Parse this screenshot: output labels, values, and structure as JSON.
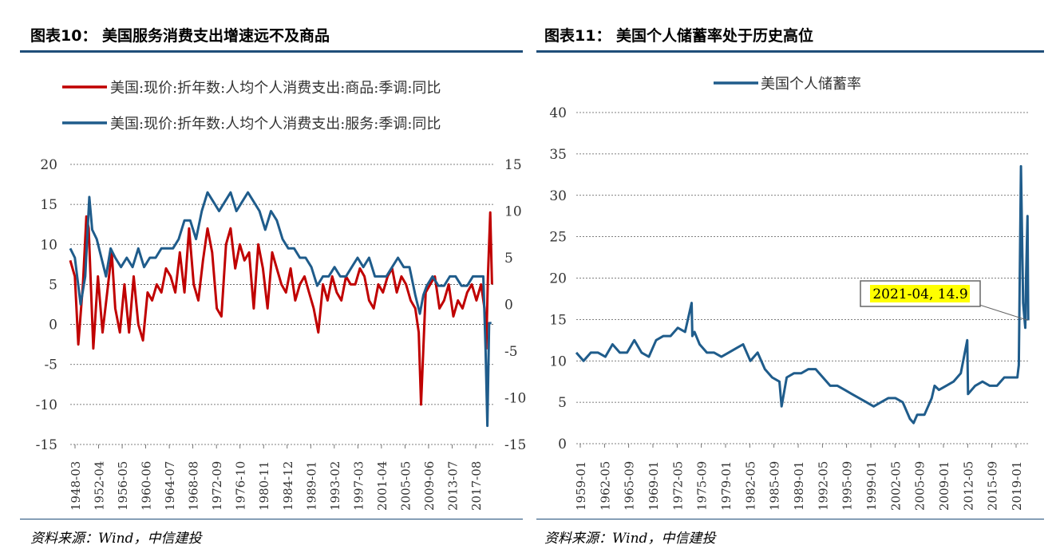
{
  "left_panel": {
    "title": "图表10：  美国服务消费支出增速远不及商品",
    "source": "资料来源：Wind，中信建投"
  },
  "right_panel": {
    "title": "图表11：  美国个人储蓄率处于历史高位",
    "source": "资料来源：Wind，中信建投"
  },
  "chart_data": [
    {
      "type": "line",
      "legend_placement": "top",
      "grid": true,
      "x_tick_labels": [
        "1948-03",
        "1952-04",
        "1956-05",
        "1960-06",
        "1964-07",
        "1968-08",
        "1972-09",
        "1976-10",
        "1980-11",
        "1984-12",
        "1989-01",
        "1993-02",
        "1997-03",
        "2001-04",
        "2005-05",
        "2009-06",
        "2013-07",
        "2017-08"
      ],
      "xlim": [
        1948.2,
        2021.8
      ],
      "ylim_left": [
        -15,
        20
      ],
      "ylim_right": [
        -15,
        15
      ],
      "left_ticks": [
        20,
        15,
        10,
        5,
        0,
        -5,
        -10,
        -15
      ],
      "right_ticks": [
        15,
        10,
        5,
        0,
        -5,
        -10,
        -15
      ],
      "series": [
        {
          "name": "美国:现价:折年数:人均个人消费支出:商品:季调:同比",
          "color": "#c00000",
          "axis": "left",
          "x": [
            1948.2,
            1949.0,
            1949.6,
            1950.4,
            1951.0,
            1951.4,
            1952.2,
            1953.0,
            1953.8,
            1954.6,
            1955.4,
            1956.0,
            1956.8,
            1957.6,
            1958.4,
            1959.2,
            1960.0,
            1960.8,
            1961.6,
            1962.4,
            1963.2,
            1964.0,
            1964.8,
            1965.6,
            1966.4,
            1967.2,
            1968.0,
            1968.8,
            1969.6,
            1970.4,
            1971.2,
            1972.0,
            1972.8,
            1973.6,
            1974.4,
            1975.2,
            1976.0,
            1976.8,
            1977.6,
            1978.4,
            1979.2,
            1980.0,
            1980.8,
            1981.6,
            1982.4,
            1983.2,
            1984.0,
            1984.8,
            1985.6,
            1986.4,
            1987.2,
            1988.0,
            1988.8,
            1989.6,
            1990.4,
            1991.2,
            1992.0,
            1992.8,
            1993.6,
            1994.4,
            1995.2,
            1996.0,
            1996.8,
            1997.6,
            1998.4,
            1999.2,
            2000.0,
            2000.8,
            2001.6,
            2002.4,
            2003.2,
            2004.0,
            2004.8,
            2005.6,
            2006.4,
            2007.2,
            2008.0,
            2008.6,
            2009.0,
            2009.4,
            2009.8,
            2010.6,
            2011.4,
            2012.2,
            2013.0,
            2013.8,
            2014.6,
            2015.4,
            2016.2,
            2017.0,
            2017.8,
            2018.6,
            2019.4,
            2020.0,
            2020.3,
            2020.6,
            2021.0,
            2021.3
          ],
          "values": [
            8,
            6,
            -2.5,
            5,
            13.5,
            12,
            -3,
            6,
            -1,
            4,
            9,
            2,
            -1,
            5,
            -1,
            6,
            0,
            -2,
            4,
            3,
            5,
            4,
            7,
            6,
            4,
            9,
            4,
            12,
            5,
            3,
            8,
            12,
            9,
            2,
            1,
            10,
            12,
            7,
            10,
            8,
            9,
            2,
            10,
            7,
            2,
            9,
            7,
            5,
            4,
            7,
            3,
            5,
            6,
            4,
            2,
            -1,
            5,
            3,
            6,
            4,
            3,
            6,
            5,
            5,
            7,
            6,
            3,
            2,
            5,
            4,
            6,
            7,
            4,
            6,
            5,
            3,
            2,
            -1,
            -10,
            -3,
            4,
            5,
            6,
            2,
            3,
            5,
            1,
            3,
            2,
            4,
            5,
            3,
            5,
            2,
            -3,
            6,
            14,
            5
          ]
        },
        {
          "name": "美国:现价:折年数:人均个人消费支出:服务:季调:同比",
          "color": "#1f5c8b",
          "axis": "right",
          "x": [
            1948.2,
            1949.0,
            1950.0,
            1950.8,
            1951.5,
            1952.0,
            1952.8,
            1953.6,
            1954.4,
            1955.2,
            1956.0,
            1957.0,
            1958.0,
            1959.0,
            1960.0,
            1961.0,
            1962.0,
            1963.0,
            1964.0,
            1965.0,
            1966.0,
            1967.0,
            1968.0,
            1969.0,
            1970.0,
            1971.0,
            1972.0,
            1973.0,
            1974.0,
            1975.0,
            1976.0,
            1977.0,
            1978.0,
            1979.0,
            1980.0,
            1981.0,
            1982.0,
            1983.0,
            1984.0,
            1985.0,
            1986.0,
            1987.0,
            1988.0,
            1989.0,
            1990.0,
            1991.0,
            1992.0,
            1993.0,
            1994.0,
            1995.0,
            1996.0,
            1997.0,
            1998.0,
            1999.0,
            2000.0,
            2001.0,
            2002.0,
            2003.0,
            2004.0,
            2005.0,
            2006.0,
            2007.0,
            2008.0,
            2008.8,
            2009.4,
            2010.0,
            2011.0,
            2012.0,
            2013.0,
            2014.0,
            2015.0,
            2016.0,
            2017.0,
            2018.0,
            2019.0,
            2019.8,
            2020.2,
            2020.5,
            2020.8,
            2021.2
          ],
          "values": [
            6,
            5,
            0,
            3,
            11.5,
            8,
            7,
            5,
            3,
            6,
            5,
            4,
            5,
            4,
            6,
            4,
            5,
            5,
            6,
            6,
            6,
            7,
            9,
            9,
            7,
            10,
            12,
            11,
            10,
            11,
            12,
            10,
            11,
            12,
            11,
            10,
            8,
            10,
            9,
            7,
            6,
            6,
            5,
            5,
            4,
            2,
            3,
            3,
            4,
            3,
            3,
            4,
            5,
            4,
            5,
            3,
            3,
            3,
            4,
            5,
            4,
            4,
            1,
            -1,
            1,
            2,
            3,
            2,
            2,
            3,
            3,
            2,
            2,
            3,
            3,
            3,
            -5,
            -13,
            -2,
            -2
          ]
        }
      ]
    },
    {
      "type": "line",
      "legend_placement": "top",
      "grid": true,
      "x_tick_labels": [
        "1959-01",
        "1962-05",
        "1965-09",
        "1969-01",
        "1972-05",
        "1975-09",
        "1979-01",
        "1982-05",
        "1985-09",
        "1989-01",
        "1992-05",
        "1995-09",
        "1999-01",
        "2002-05",
        "2005-09",
        "2009-01",
        "2012-05",
        "2015-09",
        "2019-01"
      ],
      "xlim": [
        1959.0,
        2021.5
      ],
      "ylim": [
        0,
        40
      ],
      "y_ticks": [
        40,
        35,
        30,
        25,
        20,
        15,
        10,
        5,
        0
      ],
      "annotation": {
        "text": "2021-04, 14.9",
        "x": 2021.25,
        "y": 14.9,
        "background": "#ffff00"
      },
      "series": [
        {
          "name": "美国个人储蓄率",
          "color": "#1f5c8b",
          "x": [
            1959.0,
            1960.0,
            1961.0,
            1962.0,
            1963.0,
            1964.0,
            1965.0,
            1966.0,
            1967.0,
            1968.0,
            1969.0,
            1970.0,
            1971.0,
            1972.0,
            1973.0,
            1974.0,
            1974.9,
            1975.0,
            1975.3,
            1976.0,
            1977.0,
            1978.0,
            1979.0,
            1980.0,
            1981.0,
            1982.0,
            1983.0,
            1984.0,
            1985.0,
            1986.0,
            1987.0,
            1987.3,
            1988.0,
            1989.0,
            1990.0,
            1991.0,
            1992.0,
            1993.0,
            1994.0,
            1995.0,
            1996.0,
            1997.0,
            1998.0,
            1999.0,
            2000.0,
            2001.0,
            2002.0,
            2003.0,
            2004.0,
            2005.0,
            2005.5,
            2006.0,
            2007.0,
            2008.0,
            2008.4,
            2009.0,
            2010.0,
            2011.0,
            2012.0,
            2012.9,
            2013.0,
            2014.0,
            2015.0,
            2016.0,
            2017.0,
            2018.0,
            2019.0,
            2019.8,
            2020.0,
            2020.3,
            2020.6,
            2020.9,
            2021.0,
            2021.2,
            2021.3
          ],
          "values": [
            11,
            10,
            11,
            11,
            10.5,
            12,
            11,
            11,
            12.5,
            11,
            10.5,
            12.5,
            13,
            13,
            14,
            13.5,
            17,
            13,
            13.5,
            12,
            11,
            11,
            10.5,
            11,
            11.5,
            12,
            10,
            11,
            9,
            8,
            7.5,
            4.5,
            8,
            8.5,
            8.5,
            9,
            9,
            8,
            7,
            7,
            6.5,
            6,
            5.5,
            5,
            4.5,
            5,
            5.5,
            5.5,
            5,
            3,
            2.5,
            3.5,
            3.5,
            5.5,
            7,
            6.5,
            7,
            7.5,
            8.5,
            12.5,
            6,
            7,
            7.5,
            7,
            7,
            8,
            8,
            8,
            9.5,
            33.5,
            17,
            14,
            20,
            27.5,
            14.9
          ]
        }
      ]
    }
  ]
}
